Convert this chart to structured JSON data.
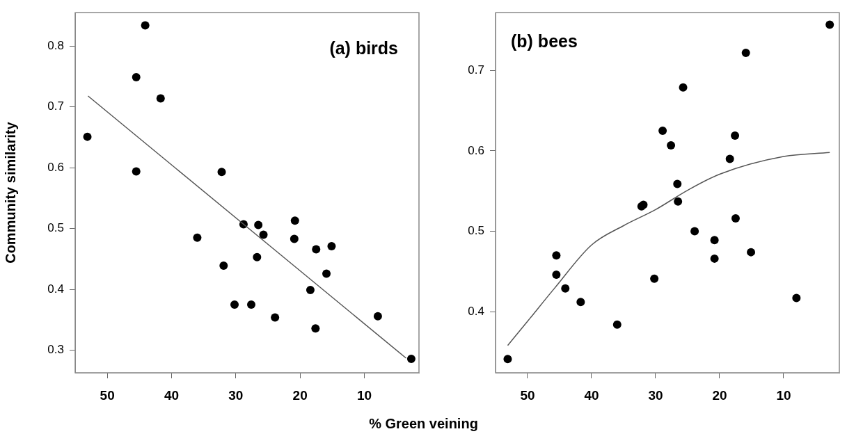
{
  "chart_data": [
    {
      "type": "scatter",
      "ylabel": "Community similarity",
      "xlabel": "% Green veining",
      "annotations": [
        "(a) birds"
      ],
      "xlim": [
        55,
        1.5
      ],
      "ylim": [
        0.263,
        0.855
      ],
      "xticks": [
        50,
        40,
        30,
        20,
        10
      ],
      "yticks": [
        0.3,
        0.4,
        0.5,
        0.6,
        0.7,
        0.8
      ],
      "grid": false,
      "legend": false,
      "series": [
        {
          "color": "#000000",
          "marker": "circle",
          "x": [
            53.1,
            44.1,
            45.5,
            41.7,
            45.5,
            32.2,
            36.0,
            28.8,
            26.5,
            25.7,
            20.8,
            20.9,
            17.5,
            15.1,
            26.7,
            31.9,
            15.9,
            18.4,
            30.2,
            27.6,
            23.9,
            17.6,
            7.9,
            2.7
          ],
          "values": [
            0.651,
            0.834,
            0.749,
            0.714,
            0.594,
            0.593,
            0.485,
            0.507,
            0.506,
            0.49,
            0.513,
            0.483,
            0.466,
            0.471,
            0.453,
            0.439,
            0.426,
            0.399,
            0.375,
            0.375,
            0.354,
            0.336,
            0.356,
            0.286
          ]
        },
        {
          "type": "line",
          "marker": "none",
          "color": "#555555",
          "x": [
            53.0,
            3.5
          ],
          "values": [
            0.718,
            0.287
          ]
        }
      ]
    },
    {
      "type": "scatter",
      "annotations": [
        "(b) bees"
      ],
      "xlim": [
        55,
        1.3
      ],
      "ylim": [
        0.324,
        0.772
      ],
      "xticks": [
        50,
        40,
        30,
        20,
        10
      ],
      "yticks": [
        0.4,
        0.5,
        0.6,
        0.7
      ],
      "grid": false,
      "legend": false,
      "series": [
        {
          "color": "#000000",
          "marker": "circle",
          "x": [
            53.1,
            45.5,
            45.5,
            44.1,
            41.7,
            36.0,
            32.2,
            31.9,
            30.2,
            28.9,
            27.6,
            26.6,
            26.5,
            25.7,
            23.9,
            20.8,
            20.8,
            18.4,
            17.6,
            17.5,
            15.9,
            15.1,
            8.0,
            2.8
          ],
          "values": [
            0.341,
            0.47,
            0.446,
            0.429,
            0.412,
            0.384,
            0.531,
            0.533,
            0.441,
            0.625,
            0.607,
            0.559,
            0.537,
            0.679,
            0.5,
            0.489,
            0.466,
            0.59,
            0.619,
            0.516,
            0.722,
            0.474,
            0.417,
            0.757
          ]
        },
        {
          "type": "line",
          "marker": "none",
          "color": "#555555",
          "x": [
            53.1,
            50,
            45.8,
            40,
            35,
            30,
            25,
            20,
            10,
            2.8
          ],
          "values": [
            0.358,
            0.388,
            0.429,
            0.483,
            0.507,
            0.527,
            0.551,
            0.571,
            0.593,
            0.598
          ]
        }
      ]
    }
  ]
}
